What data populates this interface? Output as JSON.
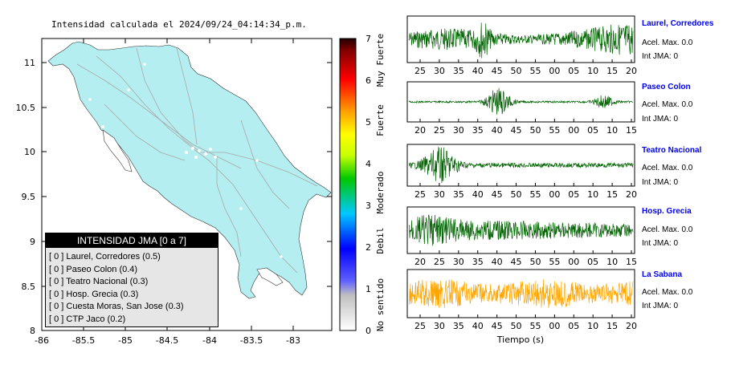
{
  "map": {
    "title": "Intensidad calculada el 2024/09/24_04:14:34_p.m.",
    "xticks": [
      "-86",
      "-85.5",
      "-85",
      "-84.5",
      "-84",
      "-83.5",
      "-83"
    ],
    "yticks": [
      "11",
      "10.5",
      "10",
      "9.5",
      "9",
      "8.5",
      "8"
    ],
    "land_color": "#b4eef0",
    "legend": {
      "title": "INTENSIDAD JMA [0 a 7]",
      "items": [
        "[ 0 ]  Laurel, Corredores (0.5)",
        "[ 0 ]  Paseo Colon (0.4)",
        "[ 0 ]  Teatro Nacional (0.3)",
        "[ 0 ]  Hosp. Grecia (0.3)",
        "[ 0 ]  Cuesta Moras, San Jose (0.3)",
        "[ 0 ]  CTP Jaco (0.2)"
      ]
    }
  },
  "colorbar": {
    "ticks": [
      "7",
      "6",
      "5",
      "4",
      "3",
      "2",
      "1",
      "0"
    ],
    "labels": [
      "Muy Fuerte",
      "Fuerte",
      "Moderado",
      "Debil",
      "No sentido"
    ]
  },
  "waveforms": {
    "xlabel": "Tiempo (s)",
    "stations": [
      {
        "name": "Laurel, Corredores",
        "acel": "Acel. Max. 0.0",
        "int": "Int JMA: 0",
        "color": "#006400",
        "ticks": [
          "25",
          "30",
          "35",
          "40",
          "45",
          "50",
          "55",
          "00",
          "05",
          "10",
          "15",
          "20"
        ]
      },
      {
        "name": "Paseo Colon",
        "acel": "Acel. Max. 0.0",
        "int": "Int JMA: 0",
        "color": "#006400",
        "ticks": [
          "20",
          "25",
          "30",
          "35",
          "40",
          "45",
          "50",
          "55",
          "00",
          "05",
          "10",
          "15"
        ]
      },
      {
        "name": "Teatro Nacional",
        "acel": "Acel. Max. 0.0",
        "int": "Int JMA: 0",
        "color": "#006400",
        "ticks": [
          "25",
          "30",
          "35",
          "40",
          "45",
          "50",
          "55",
          "00",
          "05",
          "10",
          "15",
          "20"
        ]
      },
      {
        "name": "Hosp. Grecia",
        "acel": "Acel. Max. 0.0",
        "int": "Int JMA: 0",
        "color": "#006400",
        "ticks": [
          "20",
          "25",
          "30",
          "35",
          "40",
          "45",
          "50",
          "55",
          "00",
          "05",
          "10",
          "15"
        ]
      },
      {
        "name": "La Sabana",
        "acel": "Acel. Max. 0.0",
        "int": "Int JMA: 0",
        "color": "#ffa500",
        "ticks": [
          "25",
          "30",
          "35",
          "40",
          "45",
          "50",
          "55",
          "00",
          "05",
          "10",
          "15",
          "20"
        ]
      }
    ]
  },
  "chart_data": [
    {
      "type": "map",
      "title": "Intensidad calculada el 2024/09/24_04:14:34_p.m.",
      "xlim": [
        -86,
        -82.6
      ],
      "ylim": [
        8,
        11.2
      ],
      "colorbar_range": [
        0,
        7
      ],
      "stations": [
        {
          "name": "Laurel, Corredores",
          "jma": 0,
          "value": 0.5
        },
        {
          "name": "Paseo Colon",
          "jma": 0,
          "value": 0.4
        },
        {
          "name": "Teatro Nacional",
          "jma": 0,
          "value": 0.3
        },
        {
          "name": "Hosp. Grecia",
          "jma": 0,
          "value": 0.3
        },
        {
          "name": "Cuesta Moras, San Jose",
          "jma": 0,
          "value": 0.3
        },
        {
          "name": "CTP Jaco",
          "jma": 0,
          "value": 0.2
        }
      ]
    },
    {
      "type": "line",
      "xlabel": "Tiempo (s)",
      "series": [
        {
          "name": "Laurel, Corredores",
          "acel_max": 0.0,
          "int_jma": 0
        },
        {
          "name": "Paseo Colon",
          "acel_max": 0.0,
          "int_jma": 0
        },
        {
          "name": "Teatro Nacional",
          "acel_max": 0.0,
          "int_jma": 0
        },
        {
          "name": "Hosp. Grecia",
          "acel_max": 0.0,
          "int_jma": 0
        },
        {
          "name": "La Sabana",
          "acel_max": 0.0,
          "int_jma": 0
        }
      ]
    }
  ]
}
